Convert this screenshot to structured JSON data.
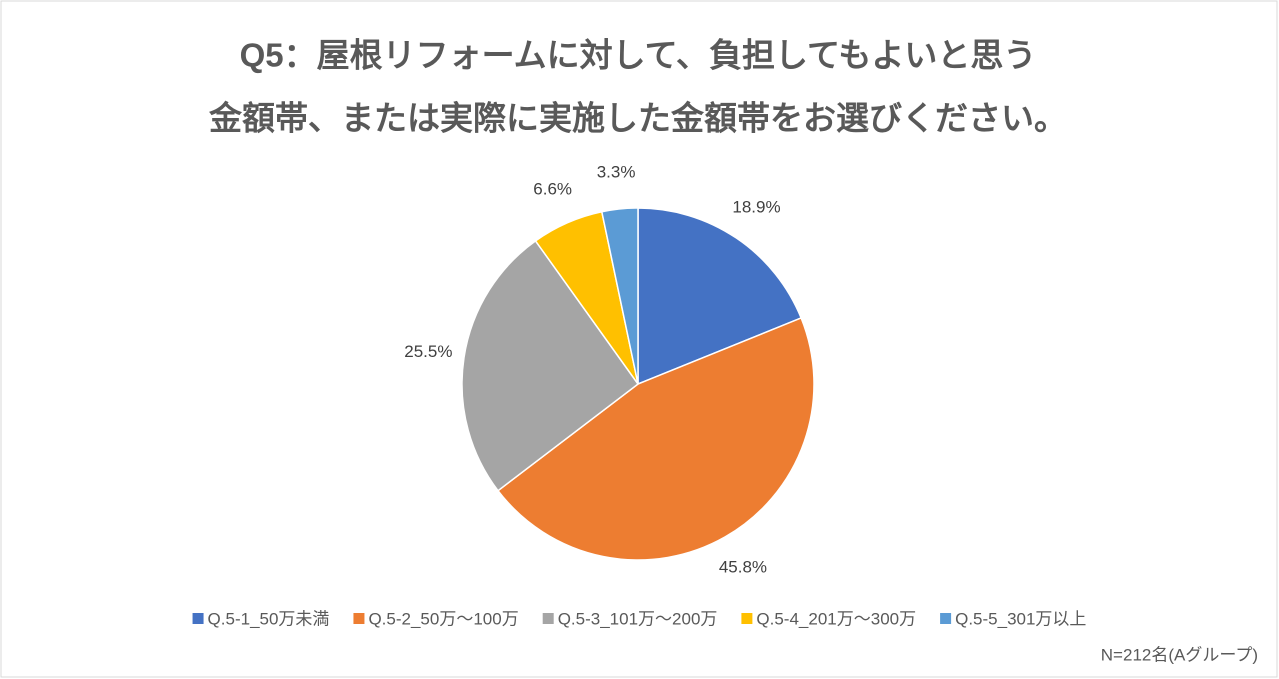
{
  "chart_data": {
    "type": "pie",
    "title": [
      "Q5：屋根リフォームに対して、負担してもよいと思う",
      "金額帯、または実際に実施した金額帯をお選びください。"
    ],
    "categories": [
      "Q.5-1_50万未満",
      "Q.5-2_50万～100万",
      "Q.5-3_101万～200万",
      "Q.5-4_201万～300万",
      "Q.5-5_301万以上"
    ],
    "values": [
      18.9,
      45.8,
      25.5,
      6.6,
      3.3
    ],
    "value_labels": [
      "18.9%",
      "45.8%",
      "25.5%",
      "6.6%",
      "3.3%"
    ],
    "colors": [
      "#4472c4",
      "#ed7d31",
      "#a5a5a5",
      "#ffc000",
      "#5b9bd5"
    ],
    "legend": "bottom",
    "note": "N=212名(Aグループ)"
  }
}
